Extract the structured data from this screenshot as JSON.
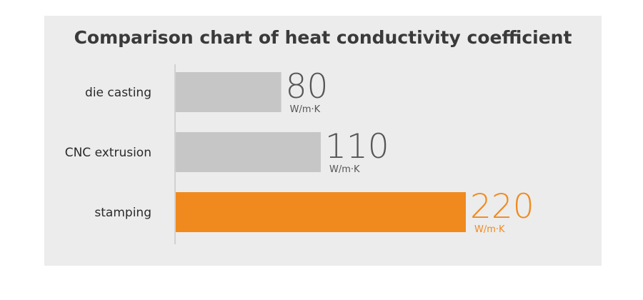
{
  "chart_data": {
    "type": "bar",
    "orientation": "horizontal",
    "title": "Comparison chart of heat conductivity coefficient",
    "categories": [
      "die casting",
      "CNC extrusion",
      "stamping"
    ],
    "values": [
      80,
      110,
      220
    ],
    "value_labels": [
      "80",
      "110",
      "220"
    ],
    "unit": "W/m·K",
    "colors": [
      "#c6c6c6",
      "#c6c6c6",
      "#f08a1e"
    ],
    "label_colors": [
      "#555555",
      "#555555",
      "#f08a1e"
    ],
    "xlim": [
      0,
      220
    ],
    "grid": false,
    "legend": "none"
  }
}
